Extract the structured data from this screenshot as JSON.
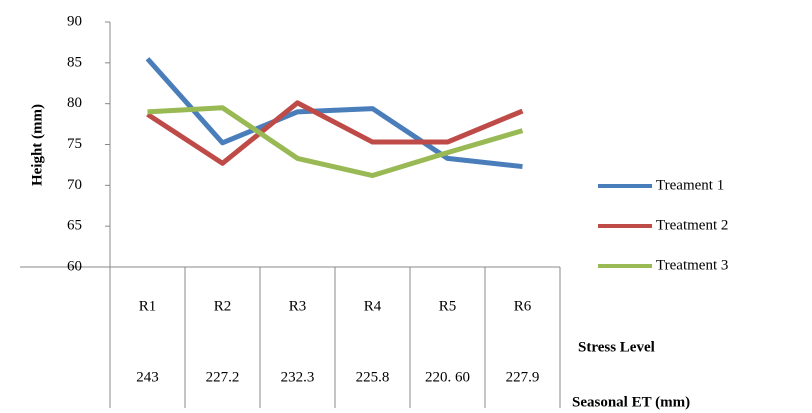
{
  "chart_data": {
    "type": "line",
    "y_label": "Height (mm)",
    "categories": [
      "R1",
      "R2",
      "R3",
      "R4",
      "R5",
      "R6"
    ],
    "row_labels": [
      "Stress Level",
      "Seasonal ET (mm)"
    ],
    "seasonal_et": [
      "243",
      "227.2",
      "232.3",
      "225.8",
      "220. 60",
      "227.9"
    ],
    "series": [
      {
        "name": "Treament 1",
        "color": "#4a7ebb",
        "values": [
          85.5,
          75.2,
          79,
          79.4,
          73.3,
          72.3
        ]
      },
      {
        "name": "Treatment 2",
        "color": "#be4b48",
        "values": [
          78.7,
          72.7,
          80.1,
          75.3,
          75.3,
          79.1
        ]
      },
      {
        "name": "Treatment 3",
        "color": "#98b954",
        "values": [
          79,
          79.5,
          73.3,
          71.2,
          74,
          76.7
        ]
      }
    ],
    "ylim": [
      60,
      90
    ],
    "yticks": [
      60,
      65,
      70,
      75,
      80,
      85,
      90
    ],
    "grid": false,
    "legend": "right"
  }
}
